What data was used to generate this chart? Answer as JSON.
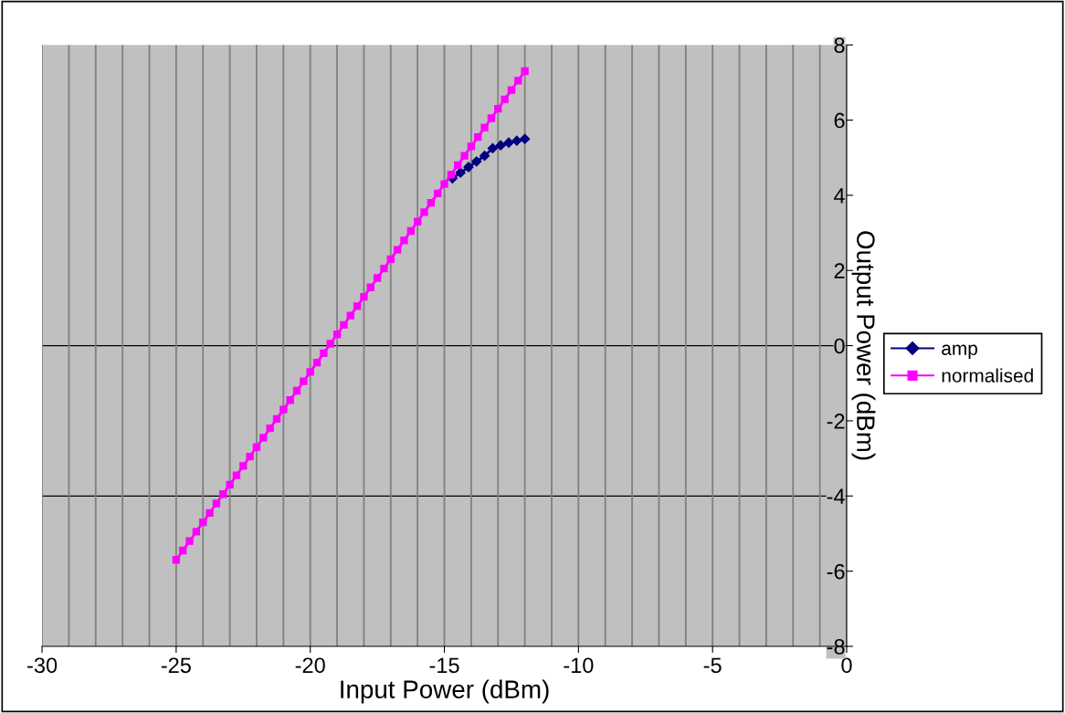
{
  "chart_data": {
    "type": "line",
    "xlabel": "Input Power (dBm)",
    "ylabel": "Output Power (dBm)",
    "xlim": [
      -30,
      0
    ],
    "ylim": [
      -8,
      8
    ],
    "xticks": [
      -30,
      {
        "value": -29,
        "label": null
      },
      {
        "value": -28,
        "label": null
      },
      {
        "value": -27,
        "label": null
      },
      {
        "value": -26,
        "label": null
      },
      -25,
      {
        "value": -24,
        "label": null
      },
      {
        "value": -23,
        "label": null
      },
      {
        "value": -22,
        "label": null
      },
      {
        "value": -21,
        "label": null
      },
      -20,
      {
        "value": -19,
        "label": null
      },
      {
        "value": -18,
        "label": null
      },
      {
        "value": -17,
        "label": null
      },
      {
        "value": -16,
        "label": null
      },
      -15,
      {
        "value": -14,
        "label": null
      },
      {
        "value": -13,
        "label": null
      },
      {
        "value": -12,
        "label": null
      },
      {
        "value": -11,
        "label": null
      },
      -10,
      {
        "value": -9,
        "label": null
      },
      {
        "value": -8,
        "label": null
      },
      {
        "value": -7,
        "label": null
      },
      {
        "value": -6,
        "label": null
      },
      -5,
      {
        "value": -4,
        "label": null
      },
      {
        "value": -3,
        "label": null
      },
      {
        "value": -2,
        "label": null
      },
      {
        "value": -1,
        "label": null
      },
      0
    ],
    "yticks": [
      -8,
      -6,
      -4,
      -2,
      0,
      2,
      4,
      6,
      8
    ],
    "grid": "x",
    "legend": "right",
    "ref_lines": [
      {
        "axis": "y",
        "value": 0,
        "label": null,
        "color": "#000000"
      },
      {
        "axis": "y",
        "value": -4,
        "label": null,
        "color": "#000000"
      }
    ],
    "series": [
      {
        "name": "amp",
        "color": "#000080",
        "marker": "diamond",
        "x": [
          -14.7,
          -14.4,
          -14.1,
          -13.8,
          -13.5,
          -13.2,
          -12.9,
          -12.6,
          -12.3,
          -12
        ],
        "values": [
          4.45,
          4.6,
          4.75,
          4.9,
          5.05,
          5.25,
          5.33,
          5.4,
          5.45,
          5.5
        ]
      },
      {
        "name": "normalised",
        "color": "#ff00ff",
        "marker": "square",
        "x": [
          -25,
          -24.75,
          -24.5,
          -24.25,
          -24,
          -23.75,
          -23.5,
          -23.25,
          -23,
          -22.75,
          -22.5,
          -22.25,
          -22,
          -21.75,
          -21.5,
          -21.25,
          -21,
          -20.75,
          -20.5,
          -20.25,
          -20,
          -19.75,
          -19.5,
          -19.25,
          -19,
          -18.75,
          -18.5,
          -18.25,
          -18,
          -17.75,
          -17.5,
          -17.25,
          -17,
          -16.75,
          -16.5,
          -16.25,
          -16,
          -15.75,
          -15.5,
          -15.25,
          -15,
          -14.75,
          -14.5,
          -14.25,
          -14,
          -13.75,
          -13.5,
          -13.25,
          -13,
          -12.75,
          -12.5,
          -12.25,
          -12
        ],
        "values": [
          -5.7,
          -5.45,
          -5.2,
          -4.95,
          -4.7,
          -4.45,
          -4.2,
          -3.95,
          -3.7,
          -3.45,
          -3.2,
          -2.95,
          -2.7,
          -2.45,
          -2.2,
          -1.95,
          -1.7,
          -1.45,
          -1.2,
          -0.95,
          -0.7,
          -0.45,
          -0.2,
          0.05,
          0.3,
          0.55,
          0.8,
          1.05,
          1.3,
          1.55,
          1.8,
          2.05,
          2.3,
          2.55,
          2.8,
          3.05,
          3.3,
          3.55,
          3.8,
          4.05,
          4.3,
          4.55,
          4.8,
          5.05,
          5.3,
          5.55,
          5.8,
          6.05,
          6.3,
          6.55,
          6.8,
          7.05,
          7.3
        ]
      }
    ]
  }
}
